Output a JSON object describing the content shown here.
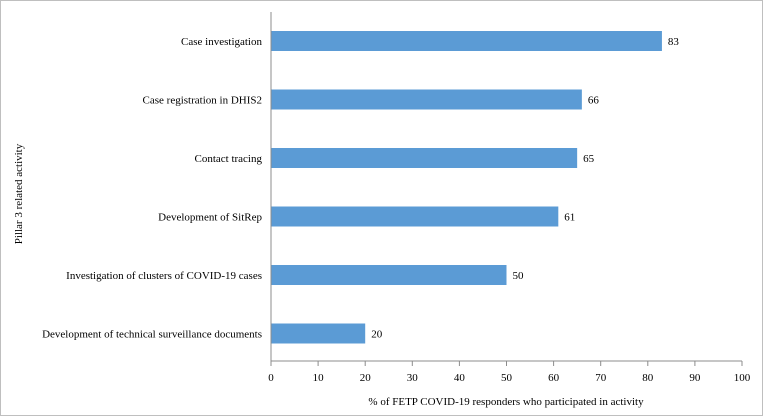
{
  "chart_data": {
    "type": "bar",
    "orientation": "horizontal",
    "categories": [
      "Case investigation",
      "Case registration in DHIS2",
      "Contact tracing",
      "Development of SitRep",
      "Investigation of clusters of COVID-19 cases",
      "Development of technical surveillance documents"
    ],
    "values": [
      83,
      66,
      65,
      61,
      50,
      20
    ],
    "value_labels": [
      "83",
      "66",
      "65",
      "61",
      "50",
      "20"
    ],
    "xlabel": "% of FETP COVID-19 responders who participated in activity",
    "ylabel": "Pillar 3 related activity",
    "xlim": [
      0,
      100
    ],
    "xticks": [
      0,
      10,
      20,
      30,
      40,
      50,
      60,
      70,
      80,
      90,
      100
    ],
    "xtick_labels": [
      "0",
      "10",
      "20",
      "30",
      "40",
      "50",
      "60",
      "70",
      "80",
      "90",
      "100"
    ],
    "grid": false,
    "legend": "none",
    "bar_color": "#5b9bd5"
  }
}
